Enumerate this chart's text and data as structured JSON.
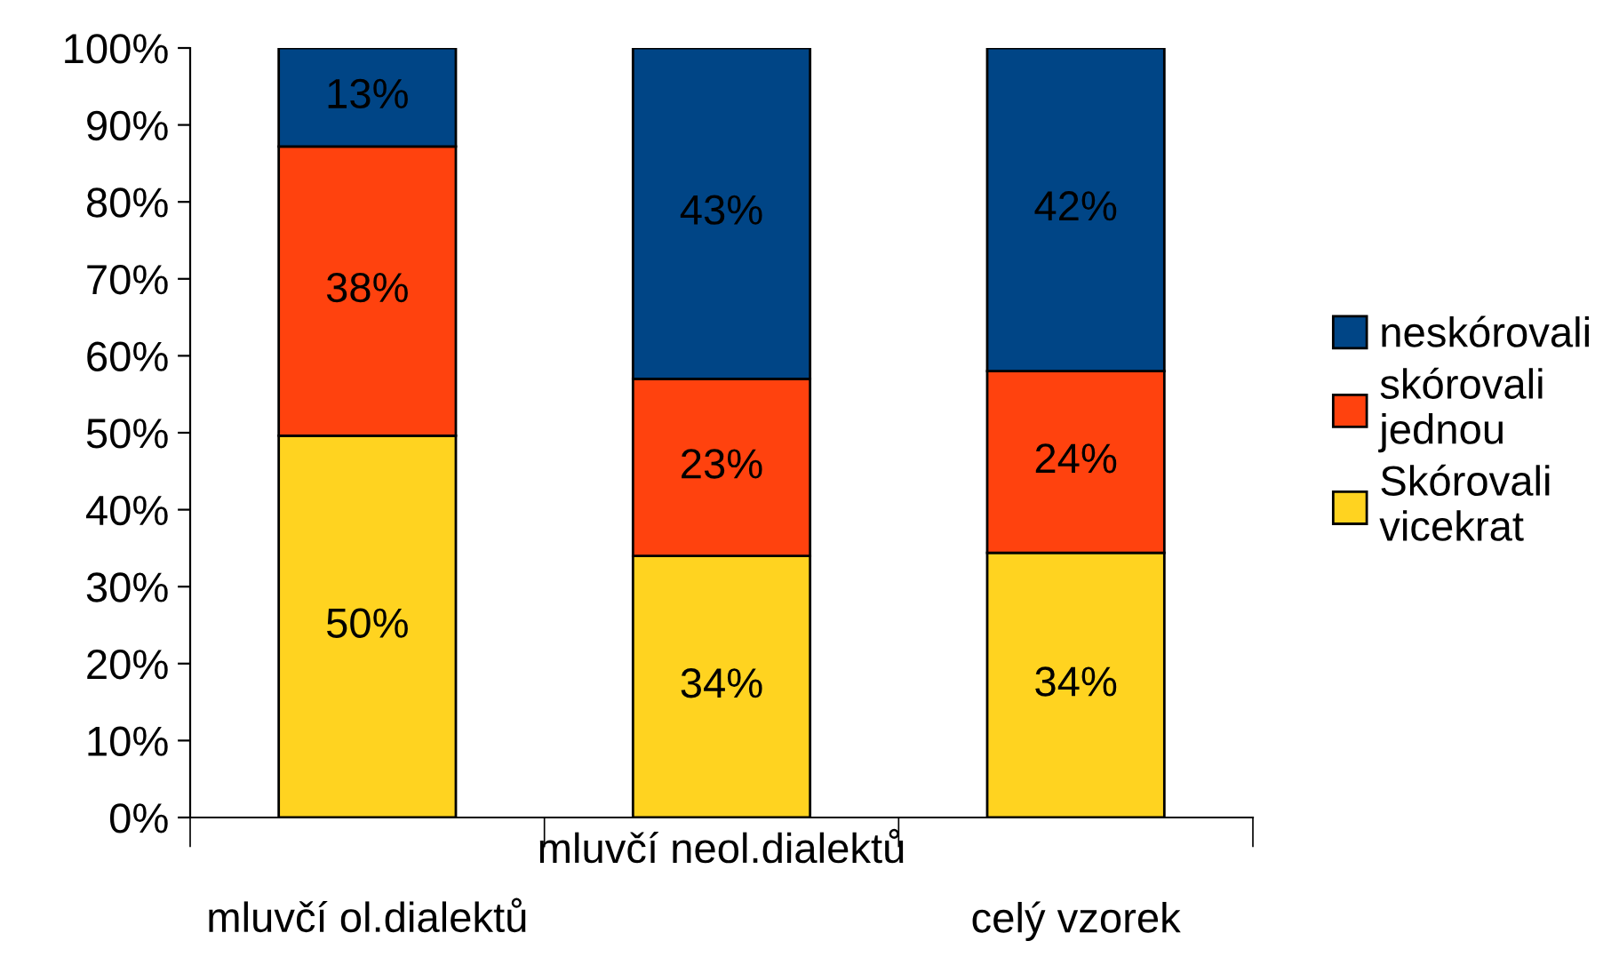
{
  "chart_data": {
    "type": "bar",
    "stacked": true,
    "categories": [
      "mluvčí ol.dialektů",
      "mluvčí neol.dialektů",
      "celý vzorek"
    ],
    "series": [
      {
        "name": "Skórovali vicekrat",
        "color": "#ffd320",
        "values": [
          49.6,
          34,
          34.4
        ],
        "value_labels": [
          "50%",
          "34%",
          "34%"
        ]
      },
      {
        "name": "skórovali jednou",
        "color": "#ff420e",
        "values": [
          37.6,
          23,
          23.6
        ],
        "value_labels": [
          "38%",
          "23%",
          "24%"
        ]
      },
      {
        "name": "neskórovali",
        "color": "#004586",
        "values": [
          12.8,
          43,
          42
        ],
        "value_labels": [
          "13%",
          "43%",
          "42%"
        ]
      }
    ],
    "ylim": [
      0,
      100
    ],
    "yticks": [
      {
        "value": 0,
        "label": "0%"
      },
      {
        "value": 10,
        "label": "10%"
      },
      {
        "value": 20,
        "label": "20%"
      },
      {
        "value": 30,
        "label": "30%"
      },
      {
        "value": 40,
        "label": "40%"
      },
      {
        "value": 50,
        "label": "50%"
      },
      {
        "value": 60,
        "label": "60%"
      },
      {
        "value": 70,
        "label": "70%"
      },
      {
        "value": 80,
        "label": "80%"
      },
      {
        "value": 90,
        "label": "90%"
      },
      {
        "value": 100,
        "label": "100%"
      }
    ],
    "grid": false,
    "legend": "right"
  }
}
